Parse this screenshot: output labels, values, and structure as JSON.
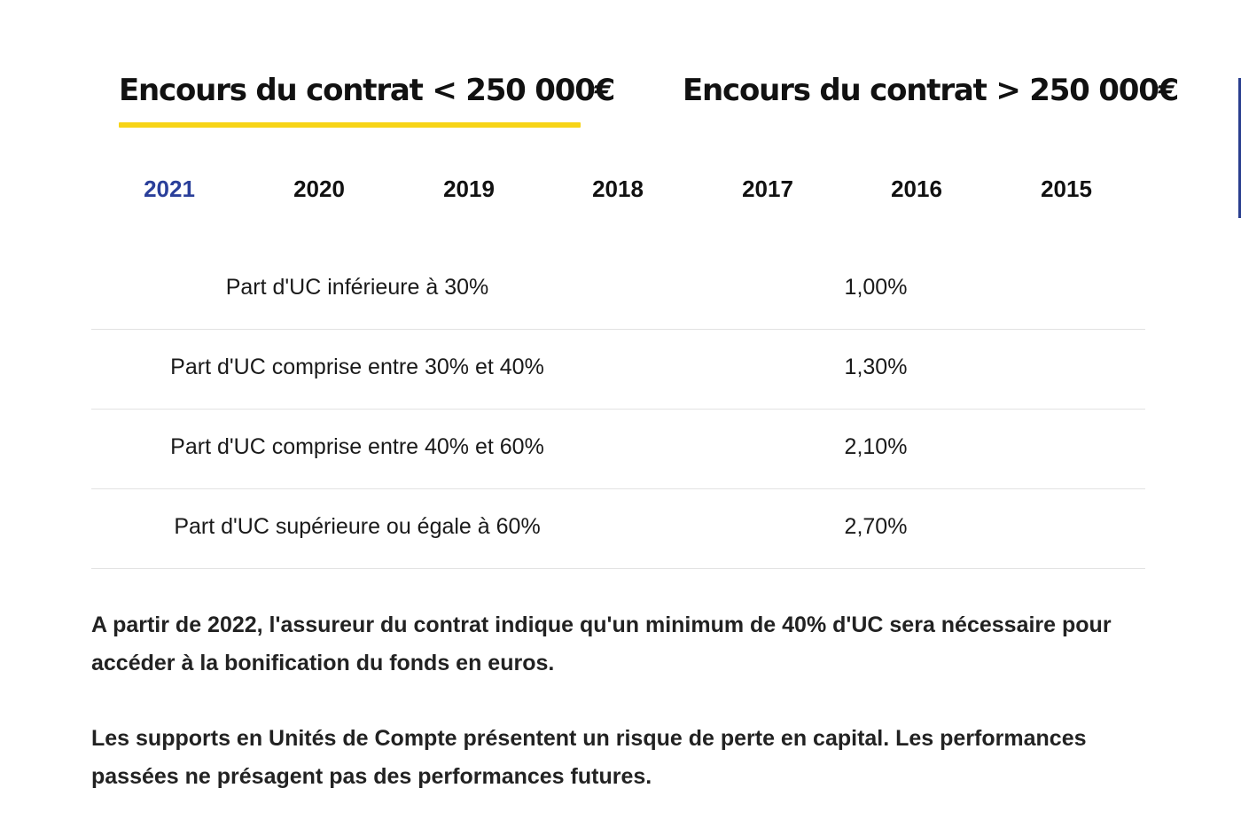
{
  "contract_tabs": [
    {
      "label": "Encours du contrat < 250 000€",
      "active": true
    },
    {
      "label": "Encours du contrat > 250 000€",
      "active": false
    }
  ],
  "colors": {
    "active_underline": "#f7d417",
    "active_year": "#2a3f9a",
    "text": "#1a1a1a"
  },
  "year_tabs": [
    {
      "label": "2021",
      "active": true
    },
    {
      "label": "2020",
      "active": false
    },
    {
      "label": "2019",
      "active": false
    },
    {
      "label": "2018",
      "active": false
    },
    {
      "label": "2017",
      "active": false
    },
    {
      "label": "2016",
      "active": false
    },
    {
      "label": "2015",
      "active": false
    }
  ],
  "rates": [
    {
      "label": "Part d'UC inférieure à 30%",
      "value": "1,00%"
    },
    {
      "label": "Part d'UC comprise entre 30% et 40%",
      "value": "1,30%"
    },
    {
      "label": "Part d'UC comprise entre 40% et 60%",
      "value": "2,10%"
    },
    {
      "label": "Part d'UC supérieure ou égale à 60%",
      "value": "2,70%"
    }
  ],
  "notes": [
    "A partir de 2022, l'assureur du contrat indique qu'un minimum de 40% d'UC sera nécessaire pour accéder à la bonification du fonds en euros.",
    "Les supports en Unités de Compte présentent un risque de perte en capital. Les performances passées ne présagent pas des performances futures."
  ]
}
